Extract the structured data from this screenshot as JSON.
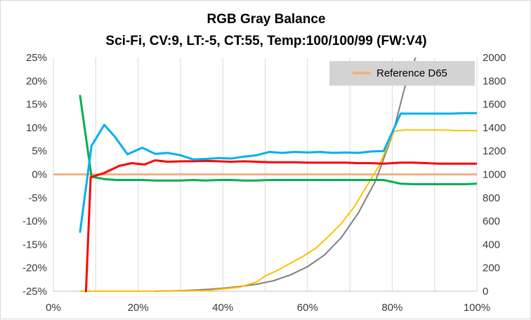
{
  "chart_data": {
    "type": "line",
    "title": "RGB Gray Balance",
    "subtitle": "Sci-Fi, CV:9, LT:-5, CT:55, Temp:100/100/99 (FW:V4)",
    "x_ticks": [
      "0%",
      "20%",
      "40%",
      "60%",
      "80%",
      "100%"
    ],
    "y_left_ticks": [
      "25%",
      "20%",
      "15%",
      "10%",
      "5%",
      "0%",
      "-5%",
      "-10%",
      "-15%",
      "-20%",
      "-25%"
    ],
    "y_right_ticks": [
      "2000",
      "1800",
      "1600",
      "1400",
      "1200",
      "1000",
      "800",
      "600",
      "400",
      "200",
      "0"
    ],
    "xlim": [
      0,
      100
    ],
    "ylim_left": [
      -25,
      25
    ],
    "ylim_right": [
      0,
      2000
    ],
    "grid": "vertical",
    "legend": {
      "placement": "top-right",
      "entries": [
        {
          "label": "Reference D65",
          "color": "#f4b183"
        }
      ]
    },
    "series": [
      {
        "color": "#00b0f0",
        "axis": "left",
        "x": [
          6.3,
          9,
          12,
          14.5,
          17.5,
          21,
          24,
          27,
          30,
          33,
          36,
          39,
          42,
          45,
          48,
          51,
          54,
          57,
          60,
          63,
          66,
          69,
          72,
          75,
          78,
          82,
          85,
          88,
          91,
          94,
          97,
          100
        ],
        "y": [
          -12.3,
          6.1,
          10.6,
          8.1,
          4.3,
          5.7,
          4.4,
          4.6,
          4.1,
          3.2,
          3.3,
          3.5,
          3.4,
          3.8,
          4.1,
          4.8,
          4.6,
          4.8,
          4.7,
          4.8,
          4.6,
          4.7,
          4.6,
          4.9,
          5.0,
          13.0,
          13.0,
          13.0,
          13.0,
          13.0,
          13.1,
          13.1
        ]
      },
      {
        "color": "#ff0000",
        "axis": "left",
        "x": [
          7.7,
          8.8,
          12,
          15.5,
          18.5,
          21.5,
          24,
          27,
          30,
          33,
          36,
          39,
          42,
          45,
          48,
          51,
          54,
          57,
          60,
          63,
          66,
          69,
          72,
          75,
          78,
          82,
          85,
          88,
          91,
          94,
          97,
          100
        ],
        "y": [
          -25,
          -0.6,
          0.3,
          1.8,
          2.4,
          2.1,
          3.0,
          2.7,
          2.8,
          2.8,
          2.9,
          2.8,
          2.7,
          2.8,
          2.7,
          2.6,
          2.6,
          2.6,
          2.5,
          2.5,
          2.5,
          2.5,
          2.4,
          2.4,
          2.3,
          2.5,
          2.5,
          2.4,
          2.3,
          2.3,
          2.3,
          2.3
        ]
      },
      {
        "color": "#00b050",
        "axis": "left",
        "x": [
          6.3,
          9,
          12,
          15,
          18,
          21,
          24,
          27,
          30,
          33,
          36,
          39,
          42,
          45,
          48,
          51,
          54,
          57,
          60,
          63,
          66,
          69,
          72,
          75,
          78,
          82,
          85,
          88,
          91,
          94,
          97,
          100
        ],
        "y": [
          16.8,
          -0.5,
          -1.0,
          -1.2,
          -1.2,
          -1.2,
          -1.3,
          -1.3,
          -1.3,
          -1.2,
          -1.3,
          -1.2,
          -1.2,
          -1.3,
          -1.3,
          -1.2,
          -1.2,
          -1.2,
          -1.2,
          -1.2,
          -1.2,
          -1.2,
          -1.2,
          -1.2,
          -1.2,
          -2.0,
          -2.1,
          -2.1,
          -2.1,
          -2.1,
          -2.1,
          -2.0
        ]
      },
      {
        "color": "#ffc000",
        "axis": "right",
        "x": [
          6.3,
          10,
          15,
          20,
          24,
          28,
          32,
          36,
          40,
          44,
          48,
          50,
          53,
          56,
          59,
          62,
          65,
          68,
          71,
          74,
          77,
          79,
          80.5,
          83,
          86,
          89,
          92,
          95,
          98,
          100
        ],
        "y": [
          0,
          0,
          0,
          0,
          1,
          2,
          3,
          5,
          20,
          35,
          80,
          130,
          180,
          240,
          300,
          370,
          470,
          580,
          720,
          900,
          1080,
          1250,
          1370,
          1380,
          1380,
          1380,
          1380,
          1375,
          1375,
          1375
        ]
      },
      {
        "color": "#808080",
        "axis": "right",
        "x": [
          24,
          28,
          32,
          36,
          40,
          44,
          48,
          52,
          56,
          60,
          64,
          68,
          72,
          76,
          80,
          83,
          85.5
        ],
        "y": [
          0,
          3,
          8,
          15,
          25,
          40,
          60,
          90,
          140,
          210,
          310,
          460,
          670,
          940,
          1330,
          1750,
          2000
        ]
      }
    ],
    "reference_line": {
      "label": "Reference D65",
      "value": 0,
      "color": "#f4b183",
      "axis": "left"
    }
  }
}
